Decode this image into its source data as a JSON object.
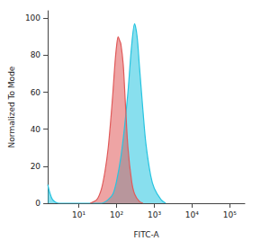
{
  "chart_data": {
    "type": "area",
    "x_label": "FITC-A",
    "y_label": "Normalized To Mode",
    "log": "x",
    "grid": false,
    "xlim": [
      1.5,
      250000
    ],
    "xticks": [
      {
        "value": 10,
        "label": "10¹"
      },
      {
        "value": 100,
        "label": "10²"
      },
      {
        "value": 1000,
        "label": "10³"
      },
      {
        "value": 10000,
        "label": "10⁴"
      },
      {
        "value": 100000,
        "label": "10⁵"
      }
    ],
    "ylim": [
      0,
      104
    ],
    "yticks": [
      0,
      20,
      40,
      60,
      80,
      100
    ],
    "series": [
      {
        "color": "#27c4e0",
        "x": [
          1.5,
          2,
          3,
          40,
          60,
          80,
          100,
          130,
          160,
          200,
          250,
          300,
          350,
          400,
          500,
          600,
          800,
          1000,
          1500,
          2000
        ],
        "values": [
          10,
          2,
          0,
          0,
          2,
          5,
          12,
          25,
          40,
          60,
          85,
          97,
          90,
          75,
          50,
          32,
          15,
          8,
          2,
          0
        ]
      },
      {
        "color": "#e05a5a",
        "x": [
          20,
          30,
          40,
          50,
          60,
          70,
          80,
          90,
          100,
          110,
          120,
          130,
          150,
          170,
          200,
          250,
          300,
          400,
          500
        ],
        "values": [
          0,
          2,
          8,
          18,
          30,
          45,
          60,
          75,
          85,
          90,
          88,
          86,
          75,
          55,
          30,
          12,
          5,
          1,
          0
        ]
      }
    ]
  }
}
